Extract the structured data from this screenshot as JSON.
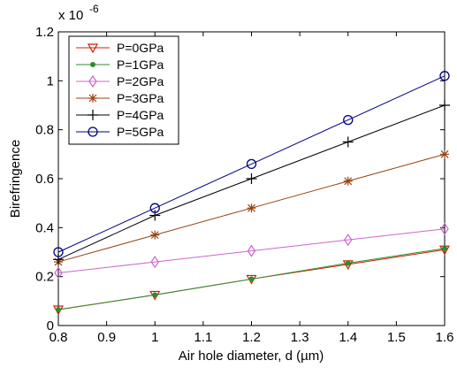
{
  "chart_data": {
    "type": "line",
    "title": "",
    "xlabel": "Air hole diameter, d (µm)",
    "ylabel": "Birefringence",
    "y_multiplier": {
      "base": "x 10",
      "exponent": "-6"
    },
    "xlim": [
      0.8,
      1.6
    ],
    "ylim": [
      0,
      1.2
    ],
    "x": [
      0.8,
      1.0,
      1.2,
      1.4,
      1.6
    ],
    "xticks": [
      "0.8",
      "0.9",
      "1",
      "1.1",
      "1.2",
      "1.3",
      "1.4",
      "1.5",
      "1.6"
    ],
    "yticks": [
      "0",
      "0.2",
      "0.4",
      "0.6",
      "0.8",
      "1",
      "1.2"
    ],
    "grid": false,
    "legend_position": "top-left",
    "series": [
      {
        "name": "P=0GPa",
        "color": "#cc2200",
        "marker": "triangle-down",
        "values": [
          0.065,
          0.125,
          0.19,
          0.25,
          0.31
        ]
      },
      {
        "name": "P=1GPa",
        "color": "#2e8b2e",
        "marker": "dot",
        "values": [
          0.065,
          0.125,
          0.19,
          0.255,
          0.315
        ]
      },
      {
        "name": "P=2GPa",
        "color": "#cc66cc",
        "marker": "diamond",
        "values": [
          0.215,
          0.26,
          0.305,
          0.35,
          0.395
        ]
      },
      {
        "name": "P=3GPa",
        "color": "#994411",
        "marker": "asterisk",
        "values": [
          0.26,
          0.37,
          0.48,
          0.59,
          0.7
        ]
      },
      {
        "name": "P=4GPa",
        "color": "#000000",
        "marker": "plus",
        "values": [
          0.27,
          0.45,
          0.6,
          0.75,
          0.9
        ]
      },
      {
        "name": "P=5GPa",
        "color": "#000080",
        "marker": "circle",
        "values": [
          0.3,
          0.48,
          0.66,
          0.84,
          1.02
        ]
      }
    ]
  }
}
